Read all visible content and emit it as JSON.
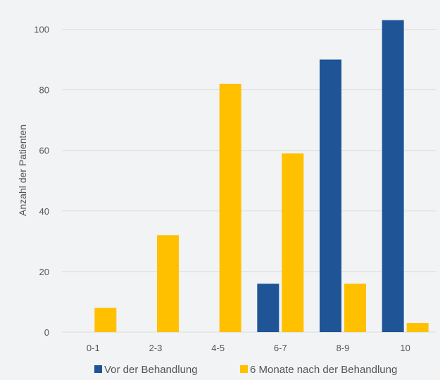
{
  "chart_data": {
    "type": "bar",
    "categories": [
      "0-1",
      "2-3",
      "4-5",
      "6-7",
      "8-9",
      "10"
    ],
    "series": [
      {
        "name": "Vor der Behandlung",
        "values": [
          0,
          0,
          0,
          16,
          90,
          103
        ]
      },
      {
        "name": "6 Monate nach der Behandlung",
        "values": [
          8,
          32,
          82,
          59,
          16,
          3
        ]
      }
    ],
    "title": "",
    "xlabel": "",
    "ylabel": "Anzahl der Patienten",
    "ylim": [
      0,
      105
    ],
    "yticks": [
      0,
      20,
      40,
      60,
      80,
      100
    ],
    "grid": true,
    "legend_position": "bottom",
    "colors": [
      "#1f5496",
      "#ffc000"
    ]
  }
}
